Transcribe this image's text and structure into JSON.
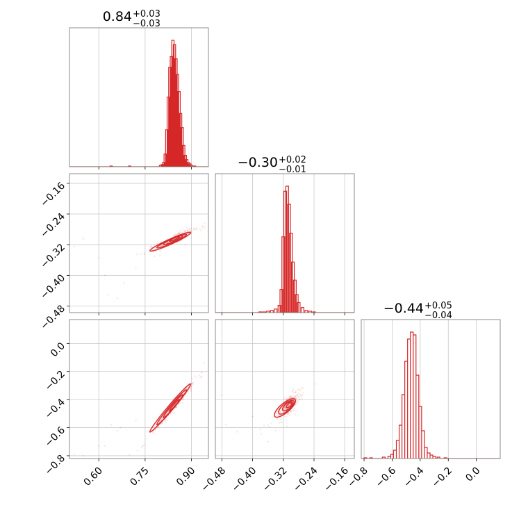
{
  "accent_color": "#d62728",
  "chart_data": {
    "type": "corner",
    "parameters": [
      {
        "title": {
          "value": "0.84",
          "plus": "+0.03",
          "minus": "−0.03"
        },
        "range": [
          0.505,
          0.955
        ],
        "ticks": [
          0.6,
          0.75,
          0.9
        ],
        "tick_labels": [
          "0.60",
          "0.75",
          "0.90"
        ]
      },
      {
        "title": {
          "value": "−0.30",
          "plus": "+0.02",
          "minus": "−0.01"
        },
        "range": [
          -0.497,
          -0.135
        ],
        "ticks": [
          -0.48,
          -0.4,
          -0.32,
          -0.24,
          -0.16
        ],
        "tick_labels": [
          "−0.48",
          "−0.40",
          "−0.32",
          "−0.24",
          "−0.16"
        ]
      },
      {
        "title": {
          "value": "−0.44",
          "plus": "+0.05",
          "minus": "−0.04"
        },
        "range": [
          -0.82,
          0.17
        ],
        "ticks": [
          -0.8,
          -0.6,
          -0.4,
          -0.2,
          0.0
        ],
        "tick_labels": [
          "−0.8",
          "−0.6",
          "−0.4",
          "−0.2",
          "0.0"
        ]
      }
    ],
    "histograms": [
      {
        "bin_edges": [
          0.505,
          0.955
        ],
        "bins": 60,
        "centers": [
          0.64,
          0.7,
          0.8,
          0.805,
          0.81,
          0.815,
          0.82,
          0.825,
          0.83,
          0.835,
          0.84,
          0.845,
          0.85,
          0.855,
          0.86,
          0.865,
          0.87,
          0.875,
          0.88,
          0.885,
          0.89,
          0.895,
          0.9,
          0.91
        ],
        "counts": [
          1,
          1,
          2,
          3,
          6,
          18,
          52,
          98,
          140,
          155,
          178,
          172,
          152,
          130,
          106,
          75,
          55,
          30,
          16,
          10,
          6,
          4,
          2,
          1
        ]
      },
      {
        "bins": 50,
        "centers": [
          -0.38,
          -0.37,
          -0.36,
          -0.35,
          -0.34,
          -0.33,
          -0.325,
          -0.32,
          -0.315,
          -0.31,
          -0.305,
          -0.3,
          -0.295,
          -0.29,
          -0.285,
          -0.28,
          -0.27,
          -0.26,
          -0.25,
          -0.24
        ],
        "counts": [
          1,
          1,
          2,
          3,
          5,
          10,
          32,
          105,
          168,
          175,
          150,
          110,
          70,
          45,
          25,
          14,
          7,
          3,
          2,
          1
        ]
      },
      {
        "bins": 50,
        "centers": [
          -0.79,
          -0.75,
          -0.66,
          -0.62,
          -0.6,
          -0.58,
          -0.56,
          -0.54,
          -0.52,
          -0.5,
          -0.48,
          -0.46,
          -0.44,
          -0.42,
          -0.4,
          -0.38,
          -0.36,
          -0.34,
          -0.32,
          -0.3,
          -0.27,
          -0.22
        ],
        "counts": [
          1,
          1,
          2,
          3,
          6,
          12,
          26,
          48,
          92,
          140,
          172,
          182,
          178,
          120,
          75,
          40,
          16,
          8,
          5,
          3,
          2,
          1
        ]
      }
    ],
    "pairs": [
      {
        "i": 1,
        "j": 0,
        "center": [
          0.845,
          -0.305
        ],
        "slope": 0.36,
        "sd_major": 0.03,
        "sd_minor": 0.004,
        "outliers": [
          [
            0.52,
            -0.325
          ],
          [
            0.55,
            -0.305
          ],
          [
            0.6,
            -0.355
          ],
          [
            0.62,
            -0.4
          ],
          [
            0.63,
            -0.45
          ],
          [
            0.66,
            -0.46
          ],
          [
            0.68,
            -0.42
          ],
          [
            0.72,
            -0.38
          ],
          [
            0.78,
            -0.35
          ],
          [
            0.88,
            -0.32
          ]
        ]
      },
      {
        "i": 2,
        "j": 0,
        "center": [
          0.845,
          -0.44
        ],
        "slope": 2.6,
        "sd_major": 0.03,
        "sd_minor": 0.012,
        "outliers": [
          [
            0.52,
            -0.79
          ],
          [
            0.55,
            -0.8
          ],
          [
            0.6,
            -0.73
          ],
          [
            0.62,
            -0.73
          ],
          [
            0.64,
            -0.58
          ],
          [
            0.66,
            -0.62
          ],
          [
            0.67,
            -0.6
          ],
          [
            0.72,
            -0.55
          ]
        ]
      },
      {
        "i": 2,
        "j": 1,
        "center": [
          -0.305,
          -0.44
        ],
        "slope": 2.3,
        "sd_major": 0.012,
        "sd_minor": 0.022,
        "outliers": [
          [
            -0.48,
            -0.37
          ],
          [
            -0.47,
            -0.58
          ],
          [
            -0.44,
            -0.63
          ],
          [
            -0.4,
            -0.52
          ],
          [
            -0.38,
            -0.61
          ],
          [
            -0.36,
            -0.7
          ],
          [
            -0.34,
            -0.62
          ],
          [
            -0.36,
            -0.58
          ]
        ]
      }
    ],
    "grid": true
  }
}
